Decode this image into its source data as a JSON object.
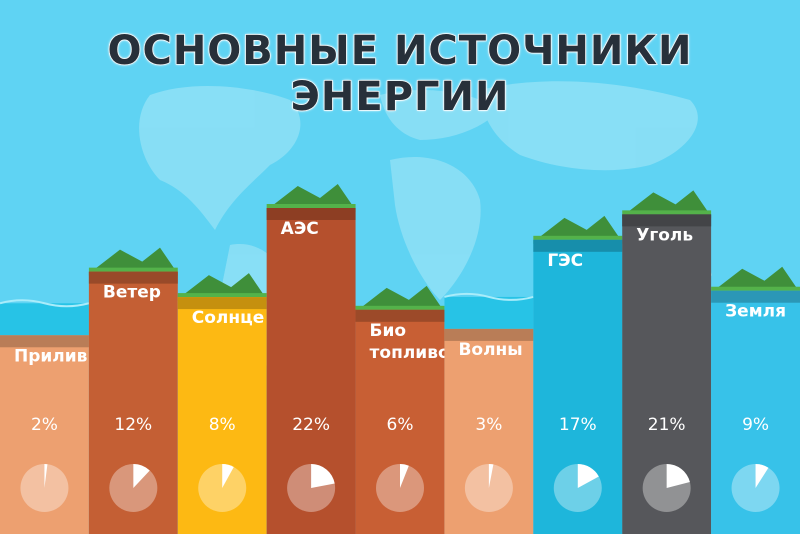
{
  "chart_data": {
    "type": "bar",
    "title": "ОСНОВНЫЕ ИСТОЧНИКИ ЭНЕРГИИ",
    "value_suffix": "%",
    "categories": [
      "Прилив",
      "Ветер",
      "Солнце",
      "АЭС",
      "Био топливо",
      "Волны",
      "ГЭС",
      "Уголь",
      "Земля"
    ],
    "category_lines": [
      [
        "Прилив"
      ],
      [
        "Ветер"
      ],
      [
        "Солнце"
      ],
      [
        "АЭС"
      ],
      [
        "Био",
        "топливо"
      ],
      [
        "Волны"
      ],
      [
        "ГЭС"
      ],
      [
        "Уголь"
      ],
      [
        "Земля"
      ]
    ],
    "values": [
      2,
      12,
      8,
      22,
      6,
      3,
      17,
      21,
      9
    ],
    "colors": [
      "#eda070",
      "#c45f34",
      "#fdb913",
      "#b5502d",
      "#c85f34",
      "#eda070",
      "#1eb6db",
      "#56575b",
      "#37c2e9"
    ],
    "legend": "none"
  }
}
